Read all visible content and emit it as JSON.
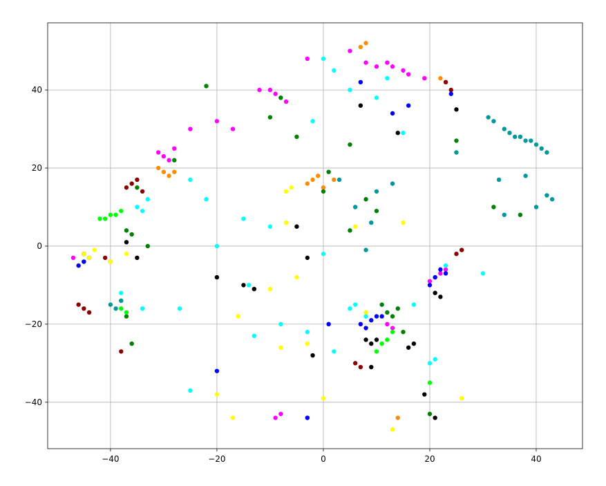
{
  "chart_data": {
    "type": "scatter",
    "xlim": [
      -51.8,
      48.7
    ],
    "ylim": [
      -51.9,
      57.2
    ],
    "xticks": [
      {
        "value": -40,
        "label": "−40"
      },
      {
        "value": -20,
        "label": "−20"
      },
      0,
      20,
      40
    ],
    "yticks": [
      {
        "value": -40,
        "label": "−40"
      },
      {
        "value": -20,
        "label": "−20"
      },
      0,
      20,
      40
    ],
    "grid": true,
    "series": [
      {
        "color": "#ff00ff",
        "x": [
          -30,
          -31,
          -29,
          -28,
          -9,
          -8,
          -7,
          -10,
          10,
          12,
          13,
          15,
          16,
          21,
          22,
          20,
          23,
          12,
          13,
          -8,
          -9,
          -25,
          -20,
          -17,
          5,
          -12,
          -3,
          8,
          19,
          -47,
          -35
        ],
        "values": [
          23,
          24,
          22,
          25,
          39,
          38,
          37,
          40,
          46,
          47,
          46,
          45,
          44,
          -8,
          -7,
          -9,
          -6,
          -20,
          -21,
          -43,
          -44,
          30,
          32,
          30,
          50,
          40,
          48,
          47,
          43,
          -3,
          -3
        ]
      },
      {
        "color": "#ff8c00",
        "x": [
          -30,
          -31,
          -29,
          -28,
          -2,
          -1,
          -3,
          0,
          7,
          8,
          23,
          22,
          -45,
          2,
          14,
          -44
        ],
        "values": [
          19,
          20,
          18,
          19,
          17,
          18,
          16,
          15,
          51,
          52,
          42,
          43,
          -2,
          17,
          -44,
          -3
        ]
      },
      {
        "color": "#8b0000",
        "x": [
          -36,
          -35,
          -37,
          -34,
          -45,
          -46,
          -44,
          -40,
          -41,
          25,
          26,
          23,
          6,
          7,
          -38,
          24
        ],
        "values": [
          16,
          17,
          15,
          14,
          -16,
          -15,
          -17,
          -4,
          -3,
          -2,
          -1,
          42,
          -30,
          -31,
          -27,
          40
        ]
      },
      {
        "color": "#008000",
        "x": [
          -37,
          -36,
          -35,
          -28,
          -38,
          -37,
          12,
          13,
          14,
          -8,
          0,
          8,
          5,
          -22,
          -10,
          -5,
          5,
          37,
          -3,
          25,
          15,
          20,
          32,
          -36,
          -45,
          -33,
          11,
          10,
          1
        ],
        "values": [
          4,
          3,
          15,
          22,
          -14,
          -18,
          -17,
          -18,
          -16,
          38,
          14,
          12,
          4,
          41,
          33,
          28,
          26,
          8,
          -44,
          27,
          -22,
          -43,
          10,
          -25,
          -4,
          0,
          -15,
          9,
          19
        ]
      },
      {
        "color": "#00ff00",
        "x": [
          -40,
          -41,
          -39,
          -38,
          -42,
          -38,
          -37,
          12,
          11,
          10,
          13,
          -45,
          20
        ],
        "values": [
          8,
          7,
          8,
          9,
          7,
          -16,
          -17,
          -24,
          -25,
          -27,
          -22,
          -4,
          -35
        ]
      },
      {
        "color": "#00ffff",
        "x": [
          -35,
          -33,
          -34,
          -38,
          -34,
          5,
          8,
          6,
          20,
          21,
          -25,
          -22,
          -15,
          -14,
          -8,
          -3,
          0,
          2,
          15,
          -2,
          5,
          10,
          23,
          30,
          -20,
          -27,
          -25,
          -10,
          -13,
          0,
          2,
          12,
          17
        ],
        "values": [
          10,
          12,
          9,
          -12,
          -16,
          -16,
          -18,
          -15,
          -30,
          -29,
          17,
          12,
          7,
          -10,
          -20,
          -22,
          -2,
          -27,
          29,
          32,
          40,
          38,
          -5,
          -7,
          0,
          -16,
          -37,
          5,
          -23,
          48,
          45,
          43,
          -15
        ]
      },
      {
        "color": "#009999",
        "x": [
          31,
          32,
          34,
          35,
          36,
          37,
          38,
          39,
          40,
          41,
          42,
          -40,
          -38,
          -39,
          9,
          6,
          10,
          13,
          42,
          43,
          40,
          38,
          34,
          8,
          3,
          25,
          33
        ],
        "values": [
          33,
          32,
          30,
          29,
          28,
          28,
          27,
          27,
          26,
          25,
          24,
          -15,
          -14,
          -16,
          6,
          10,
          14,
          16,
          13,
          12,
          10,
          18,
          8,
          -1,
          17,
          24,
          17
        ]
      },
      {
        "color": "#0000ff",
        "x": [
          9,
          10,
          11,
          8,
          7,
          21,
          22,
          20,
          23,
          -45,
          -46,
          -44,
          13,
          16,
          -3,
          7,
          -20,
          1,
          24
        ],
        "values": [
          -19,
          -18,
          -18,
          -21,
          -20,
          -8,
          -6,
          -10,
          -7,
          -4,
          -5,
          -3,
          34,
          36,
          -44,
          42,
          -32,
          -20,
          39
        ]
      },
      {
        "color": "#000000",
        "x": [
          8,
          9,
          10,
          16,
          17,
          22,
          21,
          -37,
          -35,
          -20,
          -15,
          -3,
          -5,
          -2,
          19,
          9,
          -45,
          14,
          7,
          25,
          -13,
          21
        ],
        "values": [
          -24,
          -25,
          -24,
          -26,
          -25,
          -13,
          -12,
          1,
          -3,
          -8,
          -10,
          -3,
          5,
          -28,
          -38,
          -31,
          -2,
          29,
          36,
          35,
          -11,
          -44
        ]
      },
      {
        "color": "#ffff00",
        "x": [
          -45,
          -43,
          -44,
          -7,
          -6,
          -40,
          0,
          -17,
          -20,
          -16,
          13,
          -10,
          -3,
          15,
          6,
          26,
          -37,
          -7,
          8,
          -5,
          -8
        ],
        "values": [
          -2,
          -1,
          -3,
          14,
          15,
          -4,
          -39,
          -44,
          -38,
          -18,
          -47,
          -11,
          -25,
          6,
          5,
          -39,
          -2,
          6,
          -17,
          -8,
          -26
        ]
      }
    ]
  }
}
